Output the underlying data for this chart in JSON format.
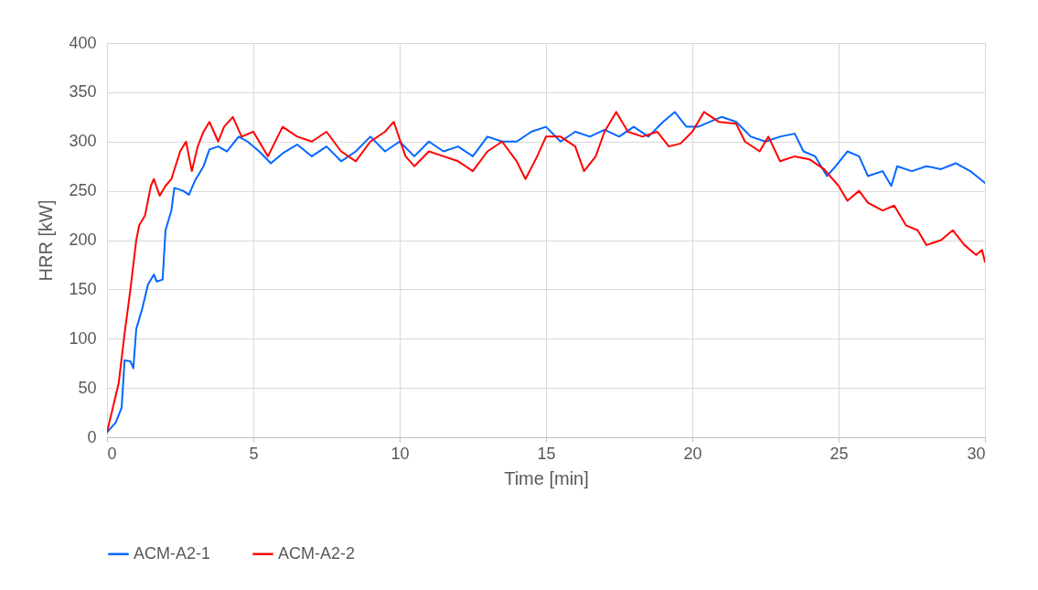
{
  "chart_data": {
    "type": "line",
    "xlabel": "Time [min]",
    "ylabel": "HRR [kW]",
    "xlim": [
      0,
      30
    ],
    "xticks": [
      0,
      5,
      10,
      15,
      20,
      25,
      30
    ],
    "ylim": [
      0,
      400
    ],
    "yticks": [
      0,
      50,
      100,
      150,
      200,
      250,
      300,
      350,
      400
    ],
    "grid": true,
    "legend": "bottom",
    "line_style": "solid",
    "series": [
      {
        "name": "ACM-A2-1",
        "color": "#0066ff",
        "x": [
          0,
          0.3,
          0.5,
          0.6,
          0.8,
          0.9,
          1.0,
          1.2,
          1.4,
          1.6,
          1.7,
          1.9,
          2.0,
          2.2,
          2.3,
          2.6,
          2.8,
          3.0,
          3.3,
          3.5,
          3.8,
          4.1,
          4.5,
          4.8,
          5.2,
          5.6,
          6.0,
          6.5,
          7.0,
          7.5,
          8.0,
          8.5,
          9.0,
          9.5,
          10,
          10.5,
          11,
          11.5,
          12,
          12.5,
          13,
          13.5,
          14,
          14.5,
          15,
          15.5,
          16,
          16.5,
          17,
          17.5,
          18,
          18.5,
          19,
          19.4,
          19.8,
          20.2,
          20.6,
          21,
          21.5,
          22,
          22.5,
          23,
          23.5,
          23.8,
          24.2,
          24.6,
          24.9,
          25.3,
          25.7,
          26,
          26.5,
          26.8,
          27,
          27.5,
          28,
          28.5,
          29,
          29.5,
          30
        ],
        "values": [
          5,
          15,
          30,
          78,
          77,
          70,
          110,
          130,
          155,
          165,
          158,
          160,
          210,
          230,
          253,
          250,
          246,
          260,
          275,
          292,
          295,
          290,
          305,
          300,
          290,
          278,
          288,
          297,
          285,
          295,
          280,
          290,
          305,
          290,
          300,
          285,
          300,
          290,
          295,
          285,
          305,
          300,
          300,
          310,
          315,
          300,
          310,
          305,
          312,
          305,
          315,
          305,
          320,
          330,
          315,
          315,
          320,
          325,
          320,
          305,
          300,
          305,
          308,
          290,
          285,
          265,
          275,
          290,
          285,
          265,
          270,
          255,
          275,
          270,
          275,
          272,
          278,
          270,
          258
        ]
      },
      {
        "name": "ACM-A2-2",
        "color": "#ff0000",
        "x": [
          0,
          0.2,
          0.4,
          0.6,
          0.8,
          1.0,
          1.1,
          1.3,
          1.5,
          1.6,
          1.8,
          2.0,
          2.2,
          2.5,
          2.7,
          2.9,
          3.1,
          3.3,
          3.5,
          3.8,
          4.0,
          4.3,
          4.6,
          5.0,
          5.5,
          6.0,
          6.5,
          7.0,
          7.5,
          8.0,
          8.5,
          9.0,
          9.5,
          9.8,
          10.2,
          10.5,
          11,
          11.5,
          12,
          12.5,
          13,
          13.5,
          14,
          14.3,
          14.7,
          15,
          15.5,
          16,
          16.3,
          16.7,
          17,
          17.4,
          17.8,
          18.3,
          18.8,
          19.2,
          19.6,
          20,
          20.4,
          20.9,
          21.5,
          21.8,
          22.3,
          22.6,
          23,
          23.5,
          24,
          24.5,
          25,
          25.3,
          25.7,
          26,
          26.5,
          26.9,
          27.3,
          27.7,
          28,
          28.5,
          28.9,
          29.3,
          29.7,
          29.9,
          30
        ],
        "values": [
          5,
          30,
          55,
          105,
          150,
          200,
          215,
          225,
          255,
          262,
          245,
          255,
          262,
          290,
          300,
          270,
          295,
          310,
          320,
          300,
          315,
          325,
          305,
          310,
          285,
          315,
          305,
          300,
          310,
          290,
          280,
          300,
          310,
          320,
          285,
          275,
          290,
          285,
          280,
          270,
          290,
          300,
          280,
          262,
          285,
          305,
          305,
          295,
          270,
          285,
          310,
          330,
          310,
          305,
          310,
          295,
          298,
          310,
          330,
          320,
          318,
          300,
          290,
          305,
          280,
          285,
          282,
          272,
          255,
          240,
          250,
          238,
          230,
          235,
          215,
          210,
          195,
          200,
          210,
          195,
          185,
          190,
          178
        ]
      }
    ]
  }
}
